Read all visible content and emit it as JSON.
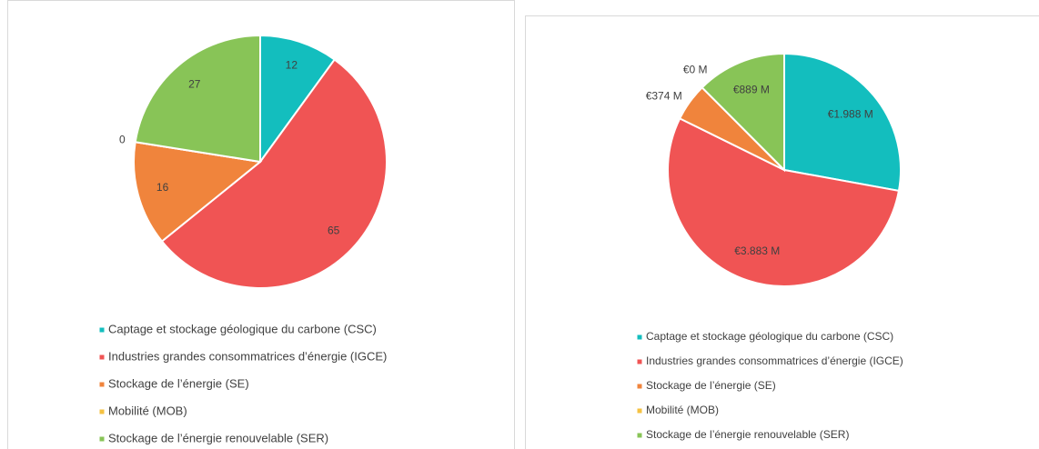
{
  "chart_data": [
    {
      "type": "pie",
      "categories": [
        "Captage et stockage géologique du carbone (CSC)",
        "Industries grandes consommatrices d’énergie (IGCE)",
        "Stockage de l’énergie (SE)",
        "Mobilité (MOB)",
        "Stockage de l’énergie renouvelable (SER)"
      ],
      "values": [
        12,
        65,
        16,
        0,
        27
      ],
      "colors": [
        "#13bebe",
        "#f05454",
        "#f0843c",
        "#f5c242",
        "#88c457"
      ]
    },
    {
      "type": "pie",
      "categories": [
        "Captage et stockage géologique du carbone (CSC)",
        "Industries grandes consommatrices d’énergie (IGCE)",
        "Stockage de l’énergie (SE)",
        "Mobilité (MOB)",
        "Stockage de l’énergie renouvelable (SER)"
      ],
      "values": [
        1988,
        3883,
        374,
        0,
        889
      ],
      "value_labels": [
        "€1.988 M",
        "€3.883 M",
        "€374 M",
        "€0 M",
        "€889 M"
      ],
      "colors": [
        "#13bebe",
        "#f05454",
        "#f0843c",
        "#f5c242",
        "#88c457"
      ]
    }
  ]
}
